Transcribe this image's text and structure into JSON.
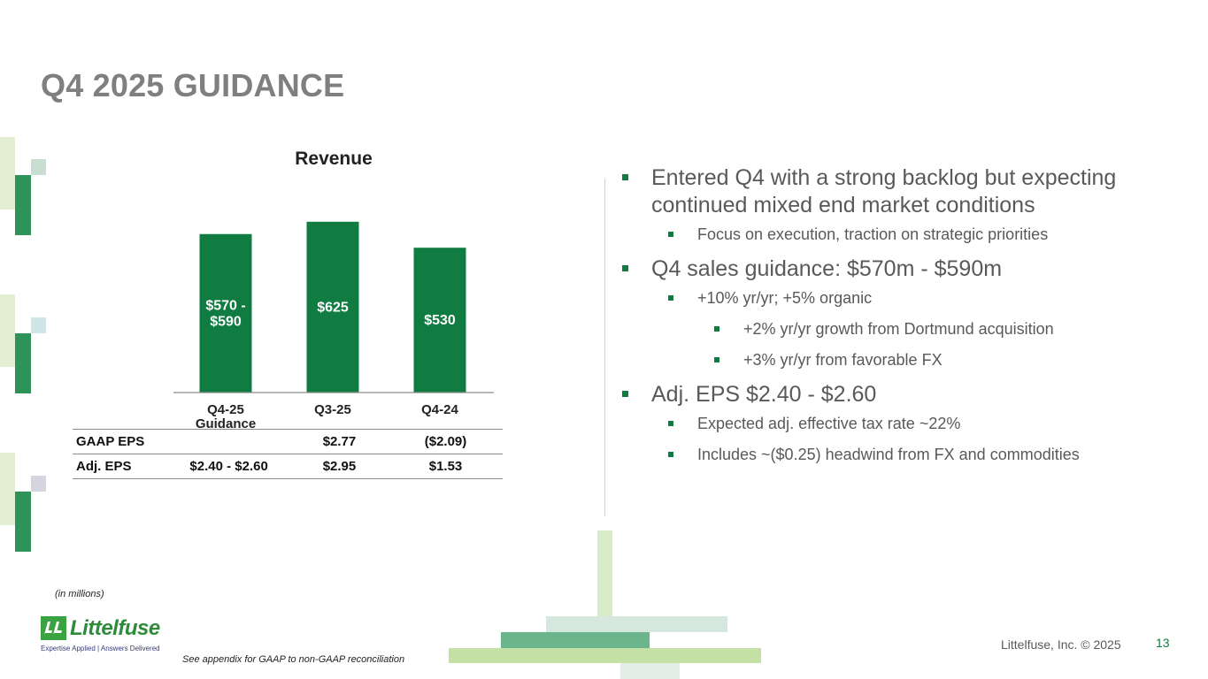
{
  "page": {
    "title": "Q4 2025 GUIDANCE",
    "units_note": "(in millions)",
    "footnote": "See appendix for GAAP to non-GAAP reconciliation",
    "copyright": "Littelfuse, Inc. © 2025",
    "page_number": "13"
  },
  "logo": {
    "wordmark": "Littelfuse",
    "tagline": "Expertise Applied | Answers Delivered"
  },
  "colors": {
    "bar": "#107c41",
    "accent_green": "#107c41",
    "title_gray": "#7f7f7f"
  },
  "chart_data": {
    "type": "bar",
    "title": "Revenue",
    "categories": [
      "Q4-25 Guidance",
      "Q3-25",
      "Q4-24"
    ],
    "values": [
      580,
      625,
      530
    ],
    "data_labels": [
      "$570 - $590",
      "$625",
      "$530"
    ],
    "ylim": [
      0,
      660
    ],
    "grid": false,
    "legend": "none"
  },
  "eps_table": {
    "rows": [
      {
        "label": "GAAP EPS",
        "q4_25": "",
        "q3_25": "$2.77",
        "q4_24": "($2.09)"
      },
      {
        "label": "Adj. EPS",
        "q4_25": "$2.40 - $2.60",
        "q3_25": "$2.95",
        "q4_24": "$1.53"
      }
    ]
  },
  "bullets": [
    {
      "level": 1,
      "text": "Entered Q4 with a strong backlog but expecting continued mixed end market conditions"
    },
    {
      "level": 2,
      "text": "Focus on execution, traction on strategic priorities"
    },
    {
      "level": 1,
      "text": "Q4 sales guidance: $570m - $590m"
    },
    {
      "level": 2,
      "text": "+10% yr/yr; +5% organic"
    },
    {
      "level": 3,
      "text": "+2% yr/yr growth from Dortmund acquisition"
    },
    {
      "level": 3,
      "text": "+3% yr/yr from favorable FX"
    },
    {
      "level": 1,
      "text": "Adj. EPS $2.40 - $2.60"
    },
    {
      "level": 2,
      "text": "Expected adj. effective tax rate ~22%"
    },
    {
      "level": 2,
      "text": "Includes ~($0.25) headwind from FX and commodities"
    }
  ]
}
